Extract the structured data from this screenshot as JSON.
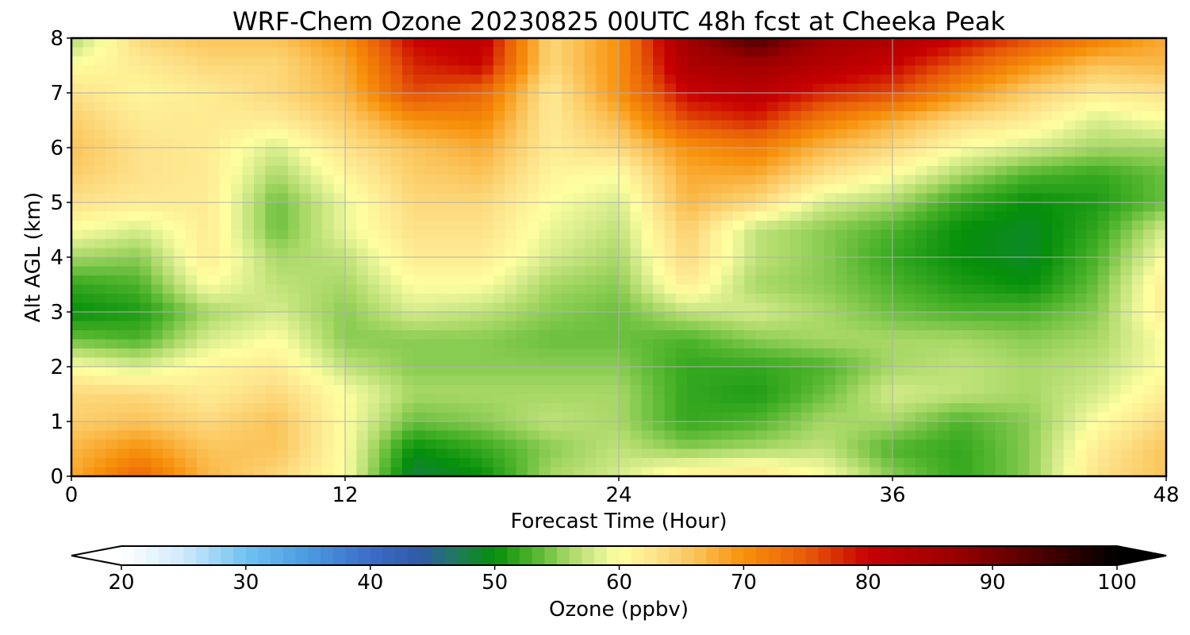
{
  "chart_data": {
    "type": "heatmap",
    "title": "WRF-Chem Ozone  20230825 00UTC 48h fcst at Cheeka Peak",
    "xlabel": "Forecast Time (Hour)",
    "ylabel": "Alt AGL (km)",
    "xlim": [
      0,
      48
    ],
    "ylim": [
      0,
      8
    ],
    "xticks": [
      "0",
      "12",
      "24",
      "36",
      "48"
    ],
    "yticks": [
      "0",
      "1",
      "2",
      "3",
      "4",
      "5",
      "6",
      "7",
      "8"
    ],
    "grid": true,
    "x": [
      0,
      3,
      6,
      9,
      12,
      15,
      18,
      21,
      24,
      27,
      30,
      33,
      36,
      39,
      42,
      45,
      48
    ],
    "y": [
      0,
      0.5,
      1,
      1.5,
      2,
      2.5,
      3,
      3.5,
      4,
      4.5,
      5,
      5.5,
      6,
      6.5,
      7,
      7.5,
      8
    ],
    "z": [
      [
        68,
        74,
        67,
        64,
        60,
        48,
        50,
        56,
        58,
        62,
        63,
        60,
        55,
        52,
        55,
        63,
        66
      ],
      [
        67,
        70,
        66,
        66,
        60,
        50,
        52,
        55,
        57,
        55,
        56,
        57,
        53,
        52,
        55,
        62,
        66
      ],
      [
        65,
        66,
        64,
        66,
        60,
        54,
        55,
        57,
        56,
        52,
        53,
        56,
        56,
        53,
        55,
        60,
        64
      ],
      [
        64,
        64,
        62,
        64,
        60,
        56,
        56,
        56,
        56,
        52,
        51,
        54,
        58,
        57,
        56,
        58,
        62
      ],
      [
        60,
        58,
        61,
        62,
        57,
        55,
        55,
        55,
        55,
        52,
        52,
        53,
        56,
        57,
        56,
        57,
        60
      ],
      [
        54,
        53,
        58,
        60,
        55,
        55,
        55,
        54,
        54,
        53,
        55,
        56,
        56,
        56,
        55,
        56,
        60
      ],
      [
        50,
        51,
        56,
        58,
        55,
        58,
        57,
        55,
        54,
        57,
        58,
        56,
        54,
        53,
        53,
        55,
        62
      ],
      [
        52,
        53,
        60,
        57,
        56,
        60,
        60,
        56,
        55,
        62,
        56,
        55,
        53,
        51,
        50,
        54,
        62
      ],
      [
        56,
        55,
        62,
        56,
        57,
        62,
        62,
        58,
        56,
        64,
        57,
        55,
        52,
        50,
        49,
        53,
        60
      ],
      [
        60,
        58,
        62,
        54,
        59,
        63,
        63,
        59,
        57,
        65,
        57,
        55,
        53,
        50,
        49,
        52,
        58
      ],
      [
        63,
        62,
        62,
        54,
        59,
        64,
        64,
        60,
        58,
        67,
        64,
        58,
        56,
        52,
        50,
        51,
        54
      ],
      [
        65,
        63,
        62,
        56,
        61,
        65,
        66,
        61,
        60,
        68,
        68,
        63,
        60,
        56,
        53,
        52,
        54
      ],
      [
        66,
        63,
        62,
        58,
        63,
        66,
        68,
        62,
        64,
        70,
        72,
        67,
        64,
        60,
        58,
        56,
        56
      ],
      [
        65,
        62,
        62,
        62,
        65,
        70,
        71,
        62,
        67,
        76,
        78,
        72,
        68,
        64,
        62,
        58,
        60
      ],
      [
        63,
        61,
        62,
        64,
        67,
        76,
        74,
        62,
        70,
        80,
        82,
        78,
        76,
        70,
        65,
        62,
        63
      ],
      [
        60,
        62,
        64,
        64,
        68,
        78,
        80,
        64,
        70,
        84,
        86,
        83,
        80,
        75,
        70,
        66,
        67
      ],
      [
        56,
        64,
        66,
        66,
        70,
        80,
        82,
        64,
        70,
        86,
        94,
        86,
        84,
        80,
        76,
        72,
        68
      ]
    ],
    "colorbar": {
      "label": "Ozone  (ppbv)",
      "ticks": [
        "20",
        "30",
        "40",
        "50",
        "60",
        "70",
        "80",
        "90",
        "100"
      ],
      "range": [
        20,
        100
      ],
      "extend": "both",
      "stops": [
        {
          "v": 20,
          "c": "#ffffff"
        },
        {
          "v": 25,
          "c": "#cfeafa"
        },
        {
          "v": 30,
          "c": "#6fc2f2"
        },
        {
          "v": 35,
          "c": "#4a9ae0"
        },
        {
          "v": 40,
          "c": "#3c6cc8"
        },
        {
          "v": 44,
          "c": "#2f5aa8"
        },
        {
          "v": 47,
          "c": "#1e7a5c"
        },
        {
          "v": 50,
          "c": "#058f0a"
        },
        {
          "v": 53,
          "c": "#4cb32a"
        },
        {
          "v": 56,
          "c": "#a8d866"
        },
        {
          "v": 58,
          "c": "#d6ec8c"
        },
        {
          "v": 60,
          "c": "#ffffa0"
        },
        {
          "v": 63,
          "c": "#fde28a"
        },
        {
          "v": 66,
          "c": "#fbc45a"
        },
        {
          "v": 70,
          "c": "#f7910a"
        },
        {
          "v": 75,
          "c": "#e85c08"
        },
        {
          "v": 80,
          "c": "#c80000"
        },
        {
          "v": 87,
          "c": "#9a0000"
        },
        {
          "v": 94,
          "c": "#4a0000"
        },
        {
          "v": 100,
          "c": "#000000"
        }
      ]
    },
    "colors": {
      "grid": "#b0b0b0",
      "axis": "#000000",
      "background": "#ffffff"
    }
  }
}
